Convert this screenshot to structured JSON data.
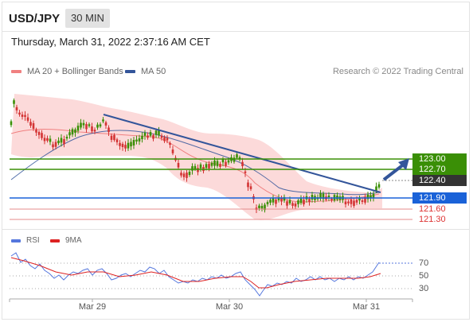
{
  "header": {
    "pair": "USD/JPY",
    "timeframe": "30 MIN"
  },
  "datetime": "Thursday, March 31, 2022 2:37:16 AM CET",
  "legend": {
    "ma20": {
      "label": "MA 20 + Bollinger Bands",
      "color": "#f08080"
    },
    "ma50": {
      "label": "MA 50",
      "color": "#33559a"
    }
  },
  "credit": "Research © 2022 Trading Central",
  "levels": [
    {
      "label": "123.00",
      "style": "green",
      "value": 123.0
    },
    {
      "label": "122.70",
      "style": "green",
      "value": 122.7
    },
    {
      "label": "122.40",
      "style": "dark",
      "value": 122.4
    },
    {
      "label": "121.90",
      "style": "blue",
      "value": 121.9
    },
    {
      "label": "121.60",
      "style": "red",
      "value": 121.6
    },
    {
      "label": "121.30",
      "style": "red",
      "value": 121.3
    }
  ],
  "rsi": {
    "legend": {
      "rsi": "RSI",
      "ma": "9MA"
    },
    "ticks": [
      "70",
      "50",
      "30"
    ]
  },
  "xaxis": {
    "labels": [
      "Mar 29",
      "Mar 30",
      "Mar 31"
    ]
  },
  "colors": {
    "up": "#3a8f06",
    "down": "#d33333",
    "support": "#1a62d8",
    "trend": "#33559a",
    "band": "#fcd6d6"
  }
}
